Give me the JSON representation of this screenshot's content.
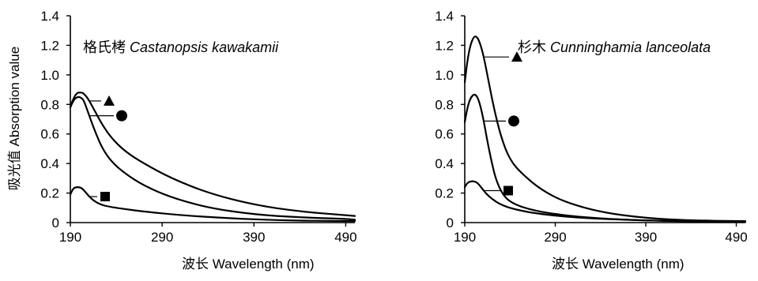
{
  "chart_data": [
    {
      "type": "line",
      "title": "格氏栲 Castanopsis kawakamii",
      "xlabel": "波长 Wavelength (nm)",
      "ylabel": "吸光值 Absorption value",
      "xlim": [
        190,
        500
      ],
      "ylim": [
        0,
        1.4
      ],
      "xticks": [
        "190",
        "290",
        "390",
        "490"
      ],
      "yticks": [
        "0",
        "0.2",
        "0.4",
        "0.6",
        "0.8",
        "1.0",
        "1.2",
        "1.4"
      ],
      "series": [
        {
          "marker": "triangle",
          "x": [
            190,
            192,
            195,
            198,
            200,
            203,
            205,
            208,
            212,
            218,
            225,
            235,
            250,
            270,
            300,
            340,
            390,
            440,
            490,
            500
          ],
          "y": [
            0.78,
            0.82,
            0.86,
            0.88,
            0.88,
            0.88,
            0.87,
            0.85,
            0.81,
            0.74,
            0.66,
            0.57,
            0.48,
            0.4,
            0.3,
            0.2,
            0.12,
            0.075,
            0.05,
            0.045
          ]
        },
        {
          "marker": "circle",
          "x": [
            190,
            192,
            195,
            198,
            200,
            203,
            205,
            208,
            212,
            218,
            225,
            235,
            250,
            270,
            300,
            340,
            390,
            440,
            490,
            500
          ],
          "y": [
            0.78,
            0.81,
            0.84,
            0.85,
            0.85,
            0.84,
            0.82,
            0.77,
            0.7,
            0.6,
            0.5,
            0.41,
            0.33,
            0.25,
            0.17,
            0.1,
            0.055,
            0.035,
            0.025,
            0.02
          ]
        },
        {
          "marker": "square",
          "x": [
            190,
            193,
            196,
            200,
            203,
            206,
            210,
            215,
            222,
            230,
            245,
            270,
            310,
            360,
            420,
            490,
            500
          ],
          "y": [
            0.19,
            0.23,
            0.24,
            0.24,
            0.23,
            0.21,
            0.18,
            0.15,
            0.125,
            0.11,
            0.095,
            0.075,
            0.05,
            0.03,
            0.015,
            0.01,
            0.01
          ]
        }
      ]
    },
    {
      "type": "line",
      "title": "杉木 Cunninghamia lanceolata",
      "xlabel": "波长 Wavelength (nm)",
      "ylabel": "",
      "xlim": [
        190,
        500
      ],
      "ylim": [
        0,
        1.4
      ],
      "xticks": [
        "190",
        "290",
        "390",
        "490"
      ],
      "yticks": [
        "0",
        "0.2",
        "0.4",
        "0.6",
        "0.8",
        "1.0",
        "1.2",
        "1.4"
      ],
      "series": [
        {
          "marker": "triangle",
          "x": [
            190,
            193,
            196,
            200,
            203,
            206,
            210,
            215,
            222,
            230,
            240,
            255,
            275,
            300,
            340,
            390,
            440,
            490,
            500
          ],
          "y": [
            0.95,
            1.1,
            1.2,
            1.26,
            1.26,
            1.23,
            1.15,
            1.0,
            0.78,
            0.58,
            0.42,
            0.32,
            0.22,
            0.14,
            0.07,
            0.03,
            0.015,
            0.01,
            0.01
          ]
        },
        {
          "marker": "circle",
          "x": [
            190,
            193,
            196,
            200,
            203,
            206,
            210,
            215,
            220,
            225,
            232,
            240,
            255,
            280,
            320,
            380,
            440,
            490,
            500
          ],
          "y": [
            0.68,
            0.78,
            0.84,
            0.87,
            0.86,
            0.82,
            0.72,
            0.55,
            0.4,
            0.28,
            0.19,
            0.14,
            0.1,
            0.065,
            0.035,
            0.015,
            0.008,
            0.005,
            0.005
          ]
        },
        {
          "marker": "square",
          "x": [
            190,
            193,
            197,
            200,
            204,
            208,
            213,
            220,
            230,
            245,
            270,
            310,
            360,
            420,
            490,
            500
          ],
          "y": [
            0.24,
            0.27,
            0.28,
            0.28,
            0.27,
            0.24,
            0.2,
            0.16,
            0.12,
            0.09,
            0.06,
            0.035,
            0.02,
            0.01,
            0.005,
            0.005
          ]
        }
      ]
    }
  ]
}
